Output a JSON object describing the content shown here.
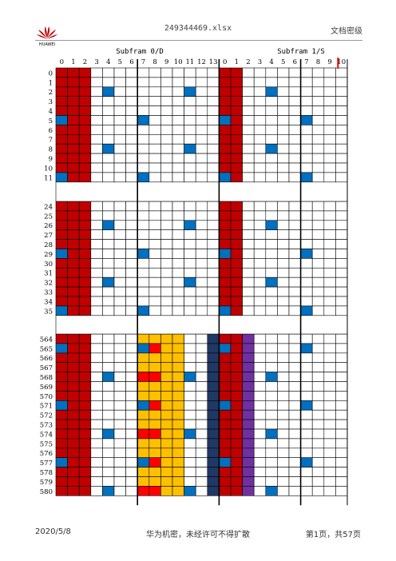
{
  "header": {
    "file_name": "249344469.xlsx",
    "security": "文档密级",
    "logo_text": "HUAWEI"
  },
  "footer": {
    "date": "2020/5/8",
    "notice": "华为机密，未经许可不得扩散",
    "page": "第1页，共57页"
  },
  "colors": {
    "red": "#C00000",
    "blue": "#0070C0",
    "yellow": "#FFC000",
    "bright_red": "#FF0000",
    "navy": "#1F3864",
    "purple": "#7030A0",
    "grid": "#000000"
  },
  "sheet": {
    "subframe0_title": "Subfram 0/D",
    "subframe1_title": "Subfram 1/S",
    "col_labels": [
      "0",
      "1",
      "2",
      "3",
      "4",
      "5",
      "6",
      "7",
      "8",
      "9",
      "10",
      "11",
      "12",
      "13",
      "0",
      "1",
      "2",
      "3",
      "4",
      "5",
      "6",
      "7",
      "8",
      "9",
      "10"
    ],
    "blocks": [
      {
        "rows": [
          "0",
          "1",
          "2",
          "3",
          "4",
          "5",
          "6",
          "7",
          "8",
          "9",
          "10",
          "11"
        ],
        "kind": "normal"
      },
      {
        "rows": [
          "24",
          "25",
          "26",
          "27",
          "28",
          "29",
          "30",
          "31",
          "32",
          "33",
          "34",
          "35"
        ],
        "kind": "normal"
      },
      {
        "rows": [
          "564",
          "565",
          "566",
          "567",
          "568",
          "569",
          "570",
          "571",
          "572",
          "573",
          "574",
          "575",
          "576",
          "577",
          "578",
          "579",
          "580"
        ],
        "kind": "special"
      }
    ]
  }
}
